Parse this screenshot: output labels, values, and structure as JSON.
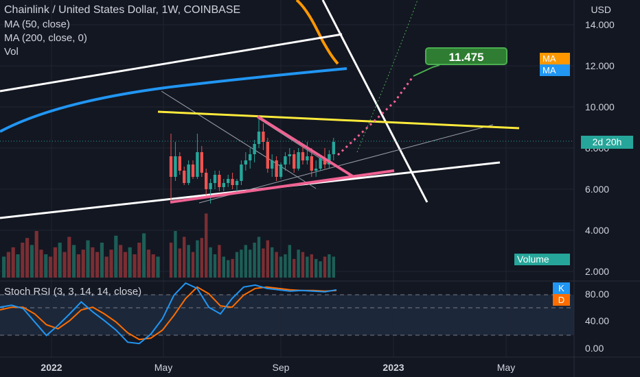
{
  "header": {
    "title": "Chainlink / United States Dollar, 1W, COINBASE",
    "ma50_label": "MA (50, close)",
    "ma200_label": "MA (200, close, 0)",
    "vol_label": "Vol"
  },
  "axis": {
    "currency": "USD",
    "price_ticks": [
      "14.000",
      "12.000",
      "10.000",
      "8.000",
      "6.000",
      "4.000",
      "2.000"
    ],
    "stoch_ticks": [
      "80.00",
      "40.00",
      "0.00"
    ],
    "time_labels": [
      "2022",
      "May",
      "Sep",
      "2023",
      "May"
    ]
  },
  "badges": {
    "countdown": "2d 20h",
    "ma_orange": "MA",
    "ma_blue": "MA",
    "volume": "Volume",
    "stoch_k": "K",
    "stoch_d": "D"
  },
  "annotation": {
    "target": "11.475"
  },
  "stoch": {
    "label": "Stoch RSI (3, 3, 14, 14, close)"
  },
  "colors": {
    "background": "#131722",
    "up": "#26a69a",
    "down": "#ef5350",
    "ma50": "#ff9800",
    "ma200": "#2196f3",
    "trendline_pink": "#f06292",
    "trendline_yellow": "#ffeb3b",
    "stoch_k": "#2196f3",
    "stoch_d": "#ff6d00",
    "target_green": "#4caf50"
  },
  "chart_data": {
    "type": "candlestick",
    "title": "Chainlink / United States Dollar, 1W, COINBASE",
    "y_range": [
      2,
      15
    ],
    "last_price": 8.3,
    "target_price": 11.475,
    "candles": [
      [
        7.6,
        8.7,
        5.3,
        6.6
      ],
      [
        6.6,
        8.3,
        6.4,
        7.6
      ],
      [
        7.6,
        7.8,
        6.7,
        6.9
      ],
      [
        6.9,
        7.1,
        6.2,
        6.3
      ],
      [
        6.3,
        7.4,
        6.2,
        7.2
      ],
      [
        7.2,
        7.4,
        6.5,
        6.6
      ],
      [
        6.6,
        8.7,
        6.5,
        7.8
      ],
      [
        7.8,
        8.1,
        6.6,
        6.8
      ],
      [
        6.8,
        7.0,
        5.7,
        6.0
      ],
      [
        6.0,
        6.5,
        5.3,
        6.3
      ],
      [
        6.3,
        6.9,
        6.0,
        6.7
      ],
      [
        6.7,
        6.9,
        5.9,
        6.1
      ],
      [
        6.1,
        6.5,
        5.9,
        6.3
      ],
      [
        6.3,
        6.7,
        6.1,
        6.5
      ],
      [
        6.5,
        6.8,
        6.0,
        6.2
      ],
      [
        6.2,
        6.5,
        5.8,
        6.4
      ],
      [
        6.4,
        7.4,
        6.2,
        7.2
      ],
      [
        7.2,
        7.8,
        6.9,
        7.4
      ],
      [
        7.4,
        8.0,
        7.0,
        7.7
      ],
      [
        7.7,
        8.4,
        7.3,
        8.2
      ],
      [
        8.2,
        9.4,
        8.0,
        8.8
      ],
      [
        8.8,
        9.2,
        7.9,
        8.3
      ],
      [
        8.3,
        8.5,
        6.8,
        7.0
      ],
      [
        7.0,
        7.7,
        6.6,
        7.4
      ],
      [
        7.4,
        7.6,
        6.4,
        6.6
      ],
      [
        6.6,
        7.3,
        6.5,
        7.2
      ],
      [
        7.2,
        7.8,
        6.9,
        7.6
      ],
      [
        7.6,
        8.0,
        7.2,
        7.7
      ],
      [
        7.7,
        7.9,
        6.8,
        7.0
      ],
      [
        7.0,
        8.0,
        6.9,
        7.8
      ],
      [
        7.8,
        8.2,
        7.2,
        7.4
      ],
      [
        7.4,
        8.3,
        7.2,
        7.6
      ],
      [
        7.6,
        8.0,
        6.6,
        6.9
      ],
      [
        6.9,
        7.4,
        6.6,
        7.0
      ],
      [
        7.0,
        7.6,
        6.9,
        7.5
      ],
      [
        7.5,
        8.0,
        7.0,
        7.2
      ],
      [
        7.2,
        7.9,
        7.0,
        7.7
      ],
      [
        7.7,
        8.5,
        7.4,
        8.3
      ]
    ],
    "volume": [
      30,
      40,
      25,
      35,
      28,
      22,
      32,
      34,
      55,
      26,
      20,
      28,
      18,
      15,
      16,
      22,
      24,
      28,
      24,
      30,
      35,
      25,
      32,
      26,
      22,
      18,
      20,
      28,
      16,
      24,
      22,
      18,
      20,
      16,
      14,
      18,
      20,
      18
    ],
    "stoch_k": [
      62,
      65,
      60,
      40,
      20,
      35,
      52,
      70,
      55,
      42,
      28,
      10,
      8,
      22,
      45,
      80,
      98,
      90,
      62,
      52,
      75,
      92,
      95,
      90,
      88,
      86,
      87,
      86,
      85,
      88
    ],
    "stoch_d": [
      58,
      62,
      62,
      52,
      36,
      30,
      42,
      58,
      62,
      52,
      40,
      24,
      14,
      16,
      28,
      50,
      75,
      92,
      82,
      64,
      62,
      80,
      90,
      92,
      90,
      88,
      87,
      87,
      86,
      87
    ]
  }
}
